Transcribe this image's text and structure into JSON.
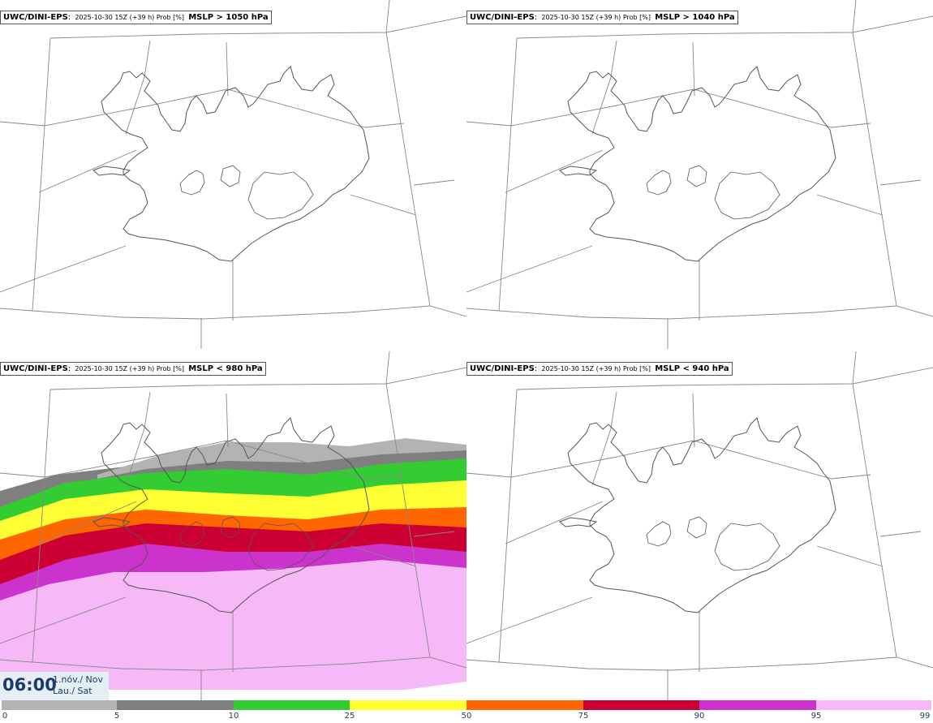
{
  "panels": [
    {
      "model": "UWC/DINI-EPS",
      "meta": "2025-10-30 15Z (+39 h) Prob [%]",
      "param": "MSLP > 1050 hPa"
    },
    {
      "model": "UWC/DINI-EPS",
      "meta": "2025-10-30 15Z (+39 h) Prob [%]",
      "param": "MSLP > 1040 hPa"
    },
    {
      "model": "UWC/DINI-EPS",
      "meta": "2025-10-30 15Z (+39 h) Prob [%]",
      "param": "MSLP < 980 hPa"
    },
    {
      "model": "UWC/DINI-EPS",
      "meta": "2025-10-30 15Z (+39 h) Prob [%]",
      "param": "MSLP < 940 hPa"
    }
  ],
  "time": {
    "clock": "06:00",
    "date_line1": "1.nóv./ Nov",
    "date_line2": "Lau./ Sat"
  },
  "legend": {
    "ticks": [
      "0",
      "5",
      "10",
      "25",
      "50",
      "75",
      "90",
      "95",
      "99"
    ],
    "colors": [
      "#ffffff",
      "#b3b3b3",
      "#7f7f7f",
      "#33cc33",
      "#ffff33",
      "#ff6600",
      "#cc0033",
      "#cc33cc",
      "#f7b8f7"
    ]
  },
  "colors": {
    "coast": "#555555",
    "grid": "#888888",
    "frame": "#555555"
  }
}
